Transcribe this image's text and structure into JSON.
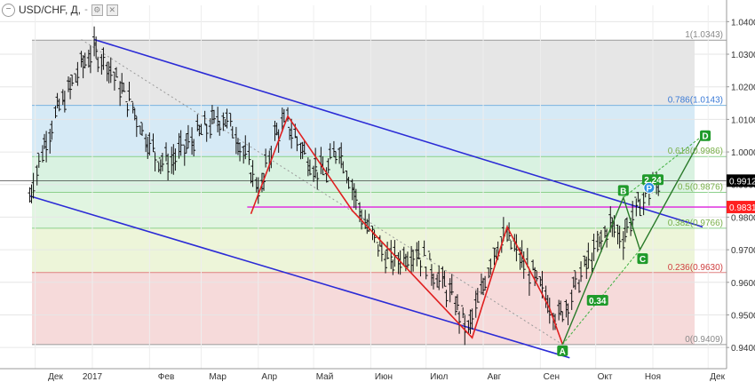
{
  "header": {
    "symbol_title": "USD/CHF, Д,",
    "dash": "-",
    "collapse_icon": "minus-circle-icon",
    "settings_icon": "gear-icon",
    "close_icon": "close-icon"
  },
  "colors": {
    "channel": "#2b2bd6",
    "zigzag": "#e02020",
    "pattern": "#40b040",
    "pattern_dark": "#2a7a2a",
    "pink_line": "#e040e0",
    "price_bars": "#111111",
    "marker_green": "#1f9a2a",
    "marker_blue": "#2a8fe0",
    "fib_text_green": "#7ab04a",
    "fib_text_blue": "#3a7ad6",
    "fib_text_red": "#d04040",
    "fib_text_grey": "#888888",
    "tag_black": "#000000",
    "tag_red": "#ff2020"
  },
  "chart_data": {
    "type": "line",
    "xlabels": [
      "Дек",
      "2017",
      "Фев",
      "Мар",
      "Апр",
      "Май",
      "Июн",
      "Июл",
      "Авг",
      "Сен",
      "Окт",
      "Ноя",
      "Дек"
    ],
    "y_ticks": [
      "1.0400",
      "1.0300",
      "1.0200",
      "1.0100",
      "1.0000",
      "0.9900",
      "0.9800",
      "0.9700",
      "0.9600",
      "0.9500",
      "0.9400"
    ],
    "y_ticks_values": [
      1.04,
      1.03,
      1.02,
      1.01,
      1.0,
      0.99,
      0.98,
      0.97,
      0.96,
      0.95,
      0.94
    ],
    "ylim": [
      0.9335,
      1.045
    ],
    "fib_levels": [
      {
        "value": 1.0343,
        "label": "1(1.0343)",
        "color": "grey"
      },
      {
        "value": 1.0143,
        "label": "0.786(1.0143)",
        "color": "blue"
      },
      {
        "value": 0.9986,
        "label": "0.618(0.9986)",
        "color": "green"
      },
      {
        "value": 0.9876,
        "label": "0.5(0.9876)",
        "color": "green"
      },
      {
        "value": 0.9766,
        "label": "0.382(0.9766)",
        "color": "green"
      },
      {
        "value": 0.963,
        "label": "0.236(0.9630)",
        "color": "red"
      },
      {
        "value": 0.9409,
        "label": "0(0.9409)",
        "color": "grey"
      }
    ],
    "price_tags": [
      {
        "value": 0.9912,
        "label": "0.9912",
        "color": "black"
      },
      {
        "value": 0.9831,
        "label": "0.9831",
        "color": "red"
      }
    ],
    "horizontal_line": 0.9831,
    "current_price_line": 0.9912,
    "price_series": [
      [
        "2016-11-28",
        0.986
      ],
      [
        "2016-12-05",
        1.0
      ],
      [
        "2016-12-12",
        1.011
      ],
      [
        "2016-12-19",
        1.018
      ],
      [
        "2016-12-26",
        1.026
      ],
      [
        "2017-01-02",
        1.031
      ],
      [
        "2017-01-09",
        1.028
      ],
      [
        "2017-01-16",
        1.02
      ],
      [
        "2017-01-23",
        1.014
      ],
      [
        "2017-01-30",
        1.005
      ],
      [
        "2017-02-06",
        0.998
      ],
      [
        "2017-02-13",
        0.997
      ],
      [
        "2017-02-20",
        1.001
      ],
      [
        "2017-02-27",
        1.005
      ],
      [
        "2017-03-06",
        1.008
      ],
      [
        "2017-03-13",
        1.011
      ],
      [
        "2017-03-20",
        1.006
      ],
      [
        "2017-03-27",
        0.996
      ],
      [
        "2017-04-03",
        0.988
      ],
      [
        "2017-04-10",
        1.005
      ],
      [
        "2017-04-17",
        1.009
      ],
      [
        "2017-04-24",
        1.002
      ],
      [
        "2017-05-01",
        0.996
      ],
      [
        "2017-05-08",
        0.993
      ],
      [
        "2017-05-15",
        1.002
      ],
      [
        "2017-05-22",
        0.99
      ],
      [
        "2017-05-29",
        0.978
      ],
      [
        "2017-06-05",
        0.972
      ],
      [
        "2017-06-12",
        0.966
      ],
      [
        "2017-06-19",
        0.968
      ],
      [
        "2017-06-26",
        0.97
      ],
      [
        "2017-07-03",
        0.965
      ],
      [
        "2017-07-10",
        0.96
      ],
      [
        "2017-07-17",
        0.954
      ],
      [
        "2017-07-24",
        0.945
      ],
      [
        "2017-07-31",
        0.956
      ],
      [
        "2017-08-07",
        0.97
      ],
      [
        "2017-08-14",
        0.974
      ],
      [
        "2017-08-21",
        0.968
      ],
      [
        "2017-08-28",
        0.962
      ],
      [
        "2017-09-04",
        0.956
      ],
      [
        "2017-09-11",
        0.949
      ],
      [
        "2017-09-18",
        0.956
      ],
      [
        "2017-09-25",
        0.964
      ],
      [
        "2017-10-02",
        0.97
      ],
      [
        "2017-10-09",
        0.978
      ],
      [
        "2017-10-16",
        0.974
      ],
      [
        "2017-10-23",
        0.982
      ],
      [
        "2017-10-30",
        0.988
      ],
      [
        "2017-11-06",
        0.9912
      ]
    ],
    "zigzag": [
      [
        "2017-03-28",
        0.981
      ],
      [
        "2017-04-17",
        1.011
      ],
      [
        "2017-05-22",
        0.982
      ],
      [
        "2017-07-26",
        0.943
      ],
      [
        "2017-08-14",
        0.977
      ],
      [
        "2017-09-06",
        0.952
      ],
      [
        "2017-09-13",
        0.941
      ]
    ],
    "pattern_points": [
      {
        "label": "A",
        "x": "2017-09-13",
        "y": 0.9409
      },
      {
        "label": "B",
        "x": "2017-10-16",
        "y": 0.986
      },
      {
        "label": "C",
        "x": "2017-10-25",
        "y": 0.97
      },
      {
        "label": "D",
        "x": "2017-11-28",
        "y": 1.005
      }
    ],
    "ratios": [
      {
        "label": "0.34",
        "x": "2017-10-02",
        "y": 0.9545
      },
      {
        "label": "2.24",
        "x": "2017-11-01",
        "y": 0.9915
      }
    ],
    "marker_p": {
      "label": "P",
      "x": "2017-10-30",
      "y": 0.989
    },
    "channel_upper": [
      [
        "2017-01-02",
        1.0345
      ],
      [
        "2017-11-28",
        0.977
      ]
    ],
    "channel_lower": [
      [
        "2016-11-28",
        0.9865
      ],
      [
        "2017-09-13",
        0.9375
      ]
    ],
    "dotted_diagonal": [
      [
        "2016-12-26",
        1.0345
      ],
      [
        "2017-09-13",
        0.9409
      ]
    ]
  }
}
